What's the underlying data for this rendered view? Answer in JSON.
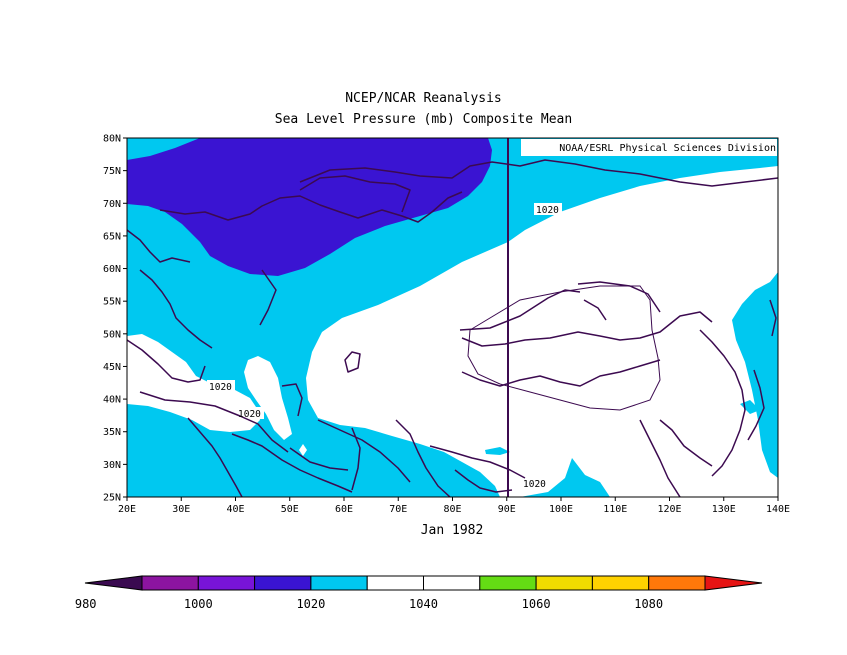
{
  "header": {
    "title": "NCEP/NCAR Reanalysis",
    "subtitle": "Sea Level Pressure (mb) Composite Mean"
  },
  "map": {
    "credit": "NOAA/ESRL Physical Sciences Division",
    "date_label": "Jan 1982",
    "lon_ticks": [
      "20E",
      "30E",
      "40E",
      "50E",
      "60E",
      "70E",
      "80E",
      "90E",
      "100E",
      "110E",
      "120E",
      "130E",
      "140E"
    ],
    "lat_ticks": [
      "80N",
      "75N",
      "70N",
      "65N",
      "60N",
      "55N",
      "50N",
      "45N",
      "40N",
      "35N",
      "30N",
      "25N"
    ],
    "contour_labels": [
      "1020",
      "1020",
      "1020",
      "1020"
    ],
    "extent": {
      "lon": [
        20,
        140
      ],
      "lat": [
        25,
        80
      ]
    },
    "colors": {
      "below_1000": "#3a14d2",
      "band_1010_1020": "#00c8f0",
      "band_1020_1040": "#ffffff",
      "outline": "#3c0a50"
    }
  },
  "colorbar": {
    "tick_labels": [
      "980",
      "1000",
      "1020",
      "1040",
      "1060",
      "1080"
    ],
    "colors": [
      "#3a0a50",
      "#8c14a0",
      "#7814d8",
      "#3a14d2",
      "#00c8f0",
      "#ffffff",
      "#ffffff",
      "#64dc14",
      "#f0dc00",
      "#ffd200",
      "#ff780a",
      "#e61414"
    ]
  }
}
